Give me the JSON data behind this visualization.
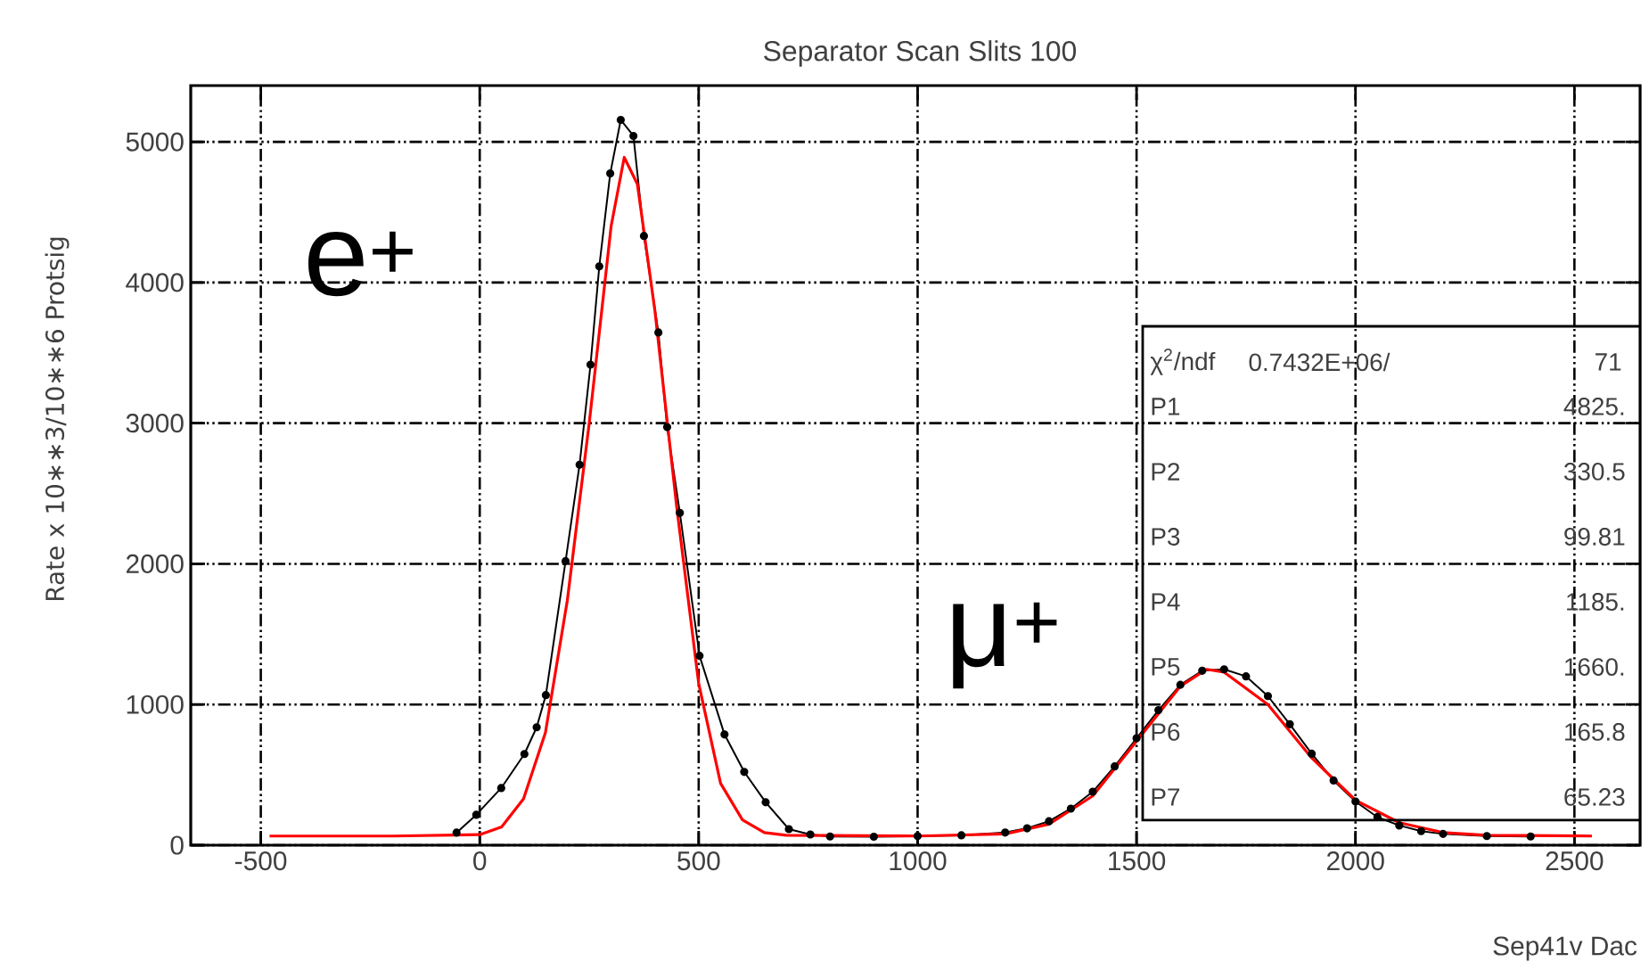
{
  "chart_data": {
    "type": "line",
    "title": "Separator Scan Slits 100",
    "xlabel": "Sep41v Dac",
    "ylabel": "Rate x 10∗∗3/10∗∗6 Protsig",
    "xlim": [
      -660,
      2650
    ],
    "ylim": [
      0,
      5400
    ],
    "xticks": [
      -500,
      0,
      500,
      1000,
      1500,
      2000,
      2500
    ],
    "yticks": [
      0,
      1000,
      2000,
      3000,
      4000,
      5000
    ],
    "grid": true,
    "annotations": [
      "e$^{+}$",
      "μ$^{+}$",
      "χ$^{2}$/ndf",
      "0.7432E+06/",
      "71",
      "P1",
      "4825.",
      "P2",
      "330.5",
      "P3",
      "99.81",
      "P4",
      "1185.",
      "P5",
      "1660.",
      "P6",
      "165.8",
      "P7",
      "65.23"
    ],
    "series": [
      {
        "color": "#000000",
        "marker": "circle",
        "x": [
          -53,
          -8,
          49,
          102,
          130,
          151,
          196,
          228,
          253,
          273,
          298,
          322,
          351,
          375,
          408,
          428,
          457,
          502,
          559,
          604,
          653,
          706,
          755,
          800,
          900,
          1000,
          1100,
          1200,
          1250,
          1300,
          1350,
          1400,
          1450,
          1500,
          1550,
          1600,
          1650,
          1700,
          1750,
          1800,
          1850,
          1900,
          1950,
          2000,
          2050,
          2100,
          2150,
          2200,
          2300,
          2400
        ],
        "values": [
          89,
          216,
          406,
          648,
          838,
          1067,
          2019,
          2705,
          3416,
          4115,
          4775,
          5156,
          5042,
          4331,
          3645,
          2972,
          2362,
          1346,
          787,
          521,
          305,
          114,
          76,
          62,
          60,
          65,
          70,
          90,
          120,
          170,
          260,
          380,
          560,
          760,
          960,
          1140,
          1240,
          1250,
          1200,
          1060,
          860,
          650,
          460,
          310,
          200,
          140,
          100,
          80,
          65,
          62
        ]
      },
      {
        "color": "#ff0000",
        "marker": "none",
        "x": [
          -480,
          -200,
          0,
          50,
          100,
          150,
          200,
          250,
          300,
          330,
          360,
          400,
          450,
          500,
          550,
          600,
          650,
          700,
          1000,
          1200,
          1300,
          1400,
          1500,
          1600,
          1660,
          1700,
          1800,
          1900,
          2000,
          2100,
          2200,
          2300,
          2540
        ],
        "values": [
          65,
          65,
          75,
          130,
          330,
          800,
          1740,
          3000,
          4400,
          4890,
          4700,
          3800,
          2400,
          1150,
          440,
          180,
          90,
          70,
          65,
          80,
          150,
          350,
          740,
          1130,
          1250,
          1230,
          1000,
          620,
          320,
          160,
          90,
          70,
          65
        ]
      }
    ]
  }
}
